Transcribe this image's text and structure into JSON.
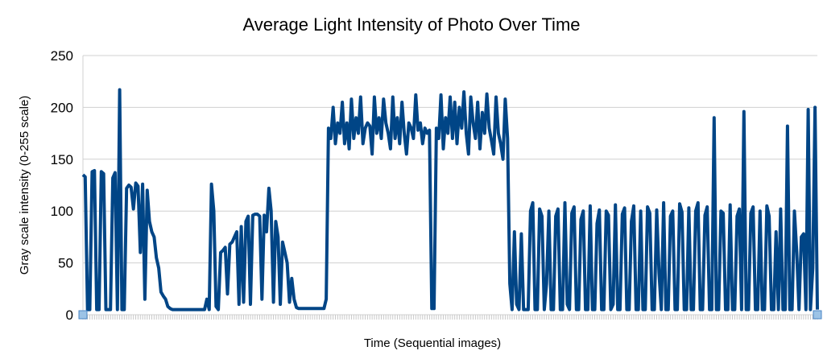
{
  "chart_data": {
    "type": "line",
    "title": "Average Light Intensity of Photo Over Time",
    "xlabel": "Time (Sequential images)",
    "ylabel": "Gray scale intensity (0-255 scale)",
    "ylim": [
      0,
      250
    ],
    "yticks": [
      "0",
      "50",
      "100",
      "150",
      "200",
      "250"
    ],
    "grid": "horizontal",
    "legend": "none",
    "line_color": "#004586",
    "series": [
      {
        "values": [
          135,
          133,
          5,
          5,
          138,
          139,
          5,
          5,
          138,
          136,
          5,
          5,
          5,
          132,
          137,
          5,
          217,
          5,
          5,
          122,
          125,
          123,
          102,
          127,
          124,
          60,
          126,
          15,
          120,
          90,
          80,
          75,
          55,
          45,
          22,
          18,
          15,
          8,
          6,
          5,
          5,
          5,
          5,
          5,
          5,
          5,
          5,
          5,
          5,
          5,
          5,
          5,
          5,
          5,
          15,
          5,
          126,
          100,
          8,
          5,
          60,
          62,
          65,
          20,
          68,
          70,
          75,
          80,
          10,
          85,
          12,
          90,
          95,
          10,
          96,
          97,
          97,
          95,
          15,
          96,
          80,
          122,
          100,
          12,
          90,
          75,
          10,
          70,
          60,
          50,
          12,
          35,
          15,
          7,
          6,
          6,
          6,
          6,
          6,
          6,
          6,
          6,
          6,
          6,
          6,
          6,
          15,
          180,
          170,
          200,
          165,
          185,
          175,
          205,
          165,
          185,
          160,
          208,
          170,
          190,
          175,
          210,
          165,
          180,
          185,
          182,
          155,
          210,
          175,
          190,
          170,
          208,
          185,
          175,
          160,
          210,
          170,
          190,
          165,
          205,
          175,
          155,
          185,
          180,
          170,
          212,
          178,
          185,
          165,
          180,
          175,
          178,
          6,
          6,
          180,
          170,
          212,
          160,
          190,
          175,
          210,
          170,
          205,
          165,
          200,
          180,
          215,
          175,
          155,
          210,
          185,
          170,
          205,
          160,
          195,
          175,
          213,
          180,
          168,
          155,
          210,
          175,
          165,
          150,
          208,
          170,
          30,
          5,
          80,
          10,
          5,
          78,
          5,
          5,
          5,
          100,
          108,
          5,
          5,
          102,
          95,
          5,
          30,
          100,
          5,
          5,
          95,
          102,
          5,
          5,
          108,
          10,
          5,
          98,
          104,
          5,
          5,
          92,
          100,
          5,
          5,
          105,
          5,
          5,
          88,
          101,
          5,
          5,
          100,
          96,
          5,
          10,
          106,
          5,
          5,
          97,
          103,
          5,
          5,
          90,
          105,
          5,
          5,
          100,
          5,
          5,
          104,
          98,
          5,
          5,
          101,
          40,
          5,
          108,
          5,
          5,
          95,
          100,
          5,
          5,
          107,
          99,
          5,
          5,
          103,
          5,
          5,
          100,
          108,
          5,
          5,
          96,
          104,
          5,
          5,
          190,
          5,
          5,
          100,
          98,
          5,
          5,
          106,
          5,
          5,
          95,
          102,
          5,
          196,
          5,
          5,
          98,
          104,
          5,
          5,
          100,
          5,
          5,
          105,
          95,
          5,
          5,
          80,
          5,
          102,
          5,
          5,
          182,
          5,
          5,
          100,
          60,
          5,
          75,
          78,
          5,
          198,
          5,
          45,
          200,
          5
        ]
      }
    ]
  }
}
